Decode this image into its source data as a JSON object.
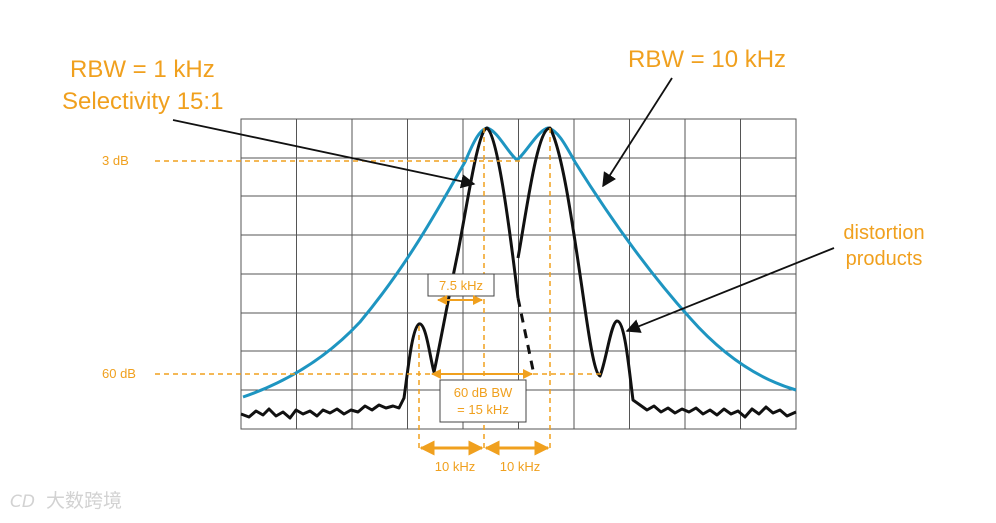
{
  "colors": {
    "annotation": "#f0a01e",
    "wide_trace": "#1e95c1",
    "narrow_trace": "#111111",
    "grid": "#555555",
    "watermark": "#d2d2d2"
  },
  "callouts": {
    "narrow_rbw": "RBW = 1 kHz",
    "selectivity": "Selectivity 15:1",
    "wide_rbw": "RBW = 10 kHz",
    "distortion_line1": "distortion",
    "distortion_line2": "products"
  },
  "levels": {
    "top": "3 dB",
    "bottom": "60 dB"
  },
  "measurements": {
    "bw_3db": "7.5 kHz",
    "bw_60db_line1": "60 dB BW",
    "bw_60db_line2": "= 15 kHz",
    "spacing_left": "10 kHz",
    "spacing_right": "10 kHz"
  },
  "watermark": {
    "logo": "CD",
    "text": "大数跨境"
  }
}
